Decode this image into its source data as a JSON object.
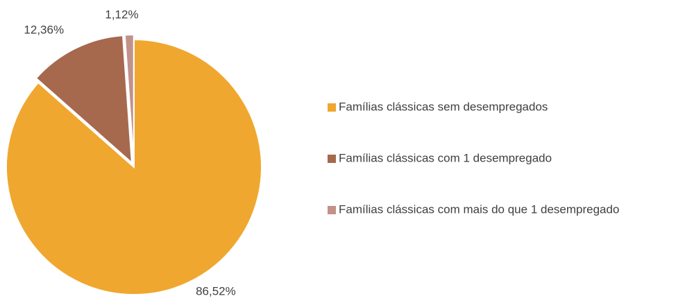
{
  "chart_data": {
    "type": "pie",
    "categories": [
      "Famílias clássicas sem desempregados",
      "Famílias clássicas com 1 desempregado",
      "Famílias clássicas com mais do que 1 desempregado"
    ],
    "values": [
      86.52,
      12.36,
      1.12
    ],
    "value_labels": [
      "86,52%",
      "12,36%",
      "1,12%"
    ],
    "colors": [
      "#f0a72f",
      "#a6694e",
      "#c2918a"
    ],
    "legend": "right"
  }
}
